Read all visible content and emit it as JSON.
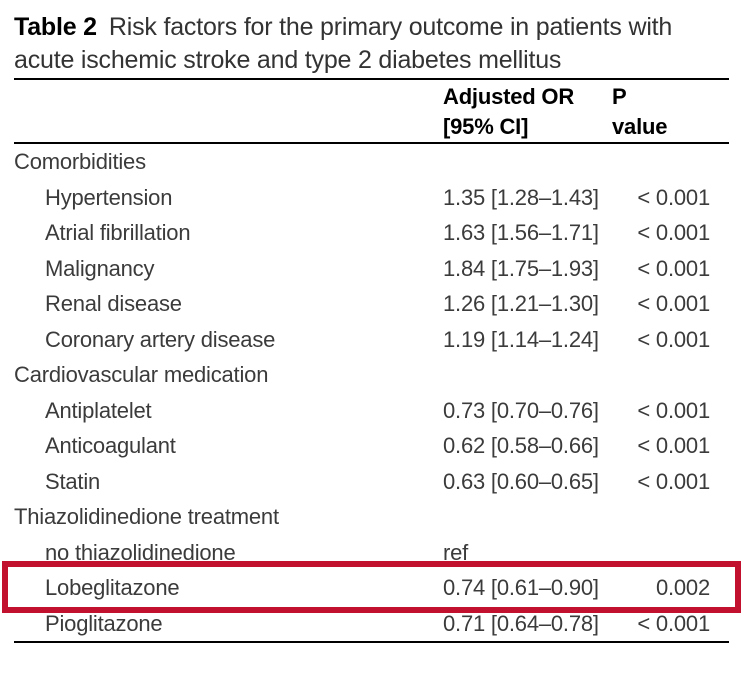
{
  "title": {
    "label": "Table 2",
    "line1": "Risk factors for the primary outcome in patients with",
    "line2": "acute ischemic stroke and type 2 diabetes mellitus"
  },
  "header": {
    "or_line1": "Adjusted OR",
    "or_line2": "[95% CI]",
    "p_line1": "P",
    "p_line2": "value"
  },
  "highlight_color": "#c2112e",
  "rows": [
    {
      "type": "section",
      "label": "Comorbidities",
      "or": "",
      "p": ""
    },
    {
      "type": "item",
      "label": "Hypertension",
      "or": "1.35 [1.28–1.43]",
      "p": "< 0.001"
    },
    {
      "type": "item",
      "label": "Atrial fibrillation",
      "or": "1.63 [1.56–1.71]",
      "p": "< 0.001"
    },
    {
      "type": "item",
      "label": "Malignancy",
      "or": "1.84 [1.75–1.93]",
      "p": "< 0.001"
    },
    {
      "type": "item",
      "label": "Renal disease",
      "or": "1.26 [1.21–1.30]",
      "p": "< 0.001"
    },
    {
      "type": "item",
      "label": "Coronary artery disease",
      "or": "1.19 [1.14–1.24]",
      "p": "< 0.001"
    },
    {
      "type": "section",
      "label": "Cardiovascular medication",
      "or": "",
      "p": ""
    },
    {
      "type": "item",
      "label": "Antiplatelet",
      "or": "0.73 [0.70–0.76]",
      "p": "< 0.001"
    },
    {
      "type": "item",
      "label": "Anticoagulant",
      "or": "0.62 [0.58–0.66]",
      "p": "< 0.001"
    },
    {
      "type": "item",
      "label": "Statin",
      "or": "0.63 [0.60–0.65]",
      "p": "< 0.001"
    },
    {
      "type": "section",
      "label": "Thiazolidinedione treatment",
      "or": "",
      "p": ""
    },
    {
      "type": "item",
      "label": "no thiazolidinedione",
      "or": "ref",
      "p": ""
    },
    {
      "type": "item",
      "label": "Lobeglitazone",
      "or": "0.74 [0.61–0.90]",
      "p": "0.002",
      "highlight": true
    },
    {
      "type": "item",
      "label": "Pioglitazone",
      "or": "0.71 [0.64–0.78]",
      "p": "< 0.001"
    }
  ]
}
